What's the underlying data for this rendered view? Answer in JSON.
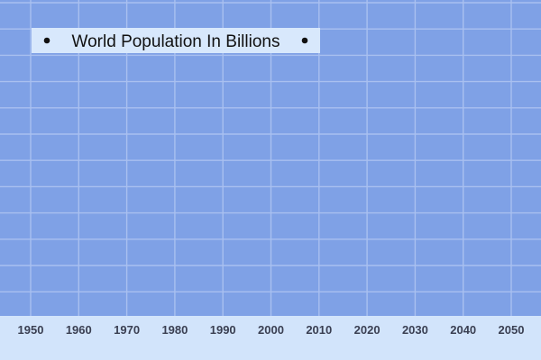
{
  "chart_data": {
    "type": "line",
    "title": "World Population In Billions",
    "title_decoration": "•",
    "xlabel": "",
    "ylabel": "",
    "x_ticks": [
      "1950",
      "1960",
      "1970",
      "1980",
      "1990",
      "2000",
      "2010",
      "2020",
      "2030",
      "2040",
      "2050"
    ],
    "xlim": [
      1950,
      2050
    ],
    "grid": true,
    "series": []
  },
  "colors": {
    "plot_background": "#7fa1e6",
    "grid_lines": "#a9c0f0",
    "axis_band": "#d2e4fb",
    "title_box": "#d8e8fc",
    "title_text": "#111111",
    "tick_text": "#3a3f52"
  }
}
